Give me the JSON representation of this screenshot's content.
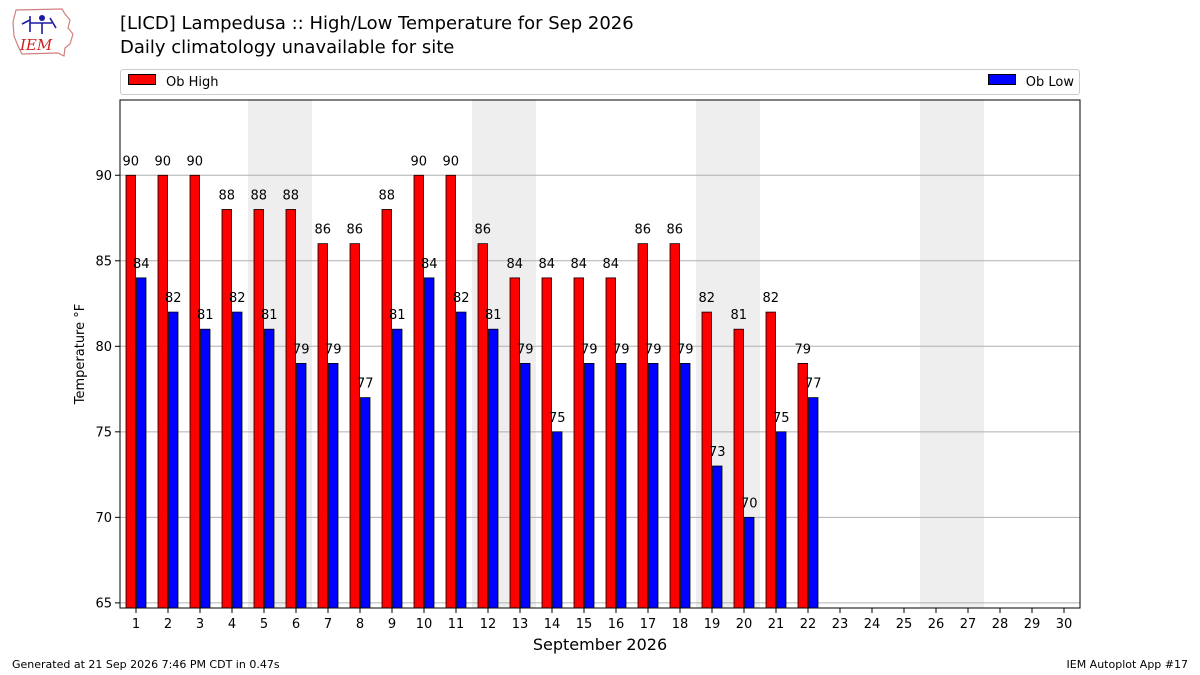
{
  "header": {
    "title_line1": "[LICD] Lampedusa :: High/Low Temperature for Sep 2026",
    "title_line2": "Daily climatology unavailable for site"
  },
  "logo": {
    "text": "IEM"
  },
  "footer": {
    "generated": "Generated at 21 Sep 2026 7:46 PM CDT in 0.47s",
    "app": "IEM Autoplot App #17"
  },
  "colors": {
    "high": "#ff0000",
    "low": "#0000ff",
    "weekend_band": "#eeeeee",
    "grid": "#b0b0b0"
  },
  "chart_data": {
    "type": "bar",
    "title": "[LICD] Lampedusa :: High/Low Temperature for Sep 2026",
    "subtitle": "Daily climatology unavailable for site",
    "xlabel": "September 2026",
    "ylabel": "Temperature °F",
    "ylim": [
      64.7,
      94.4
    ],
    "yticks": [
      65,
      70,
      75,
      80,
      85,
      90
    ],
    "categories": [
      "1",
      "2",
      "3",
      "4",
      "5",
      "6",
      "7",
      "8",
      "9",
      "10",
      "11",
      "12",
      "13",
      "14",
      "15",
      "16",
      "17",
      "18",
      "19",
      "20",
      "21",
      "22",
      "23",
      "24",
      "25",
      "26",
      "27",
      "28",
      "29",
      "30"
    ],
    "series": [
      {
        "name": "Ob High",
        "color": "#ff0000",
        "values": [
          90,
          90,
          90,
          88,
          88,
          88,
          86,
          86,
          88,
          90,
          90,
          86,
          84,
          84,
          84,
          84,
          86,
          86,
          82,
          81,
          82,
          79,
          null,
          null,
          null,
          null,
          null,
          null,
          null,
          null
        ]
      },
      {
        "name": "Ob Low",
        "color": "#0000ff",
        "values": [
          84,
          82,
          81,
          82,
          81,
          79,
          79,
          77,
          81,
          84,
          82,
          81,
          79,
          75,
          79,
          79,
          79,
          79,
          73,
          70,
          75,
          77,
          null,
          null,
          null,
          null,
          null,
          null,
          null,
          null
        ]
      }
    ],
    "shaded_weekend_days": [
      [
        5,
        6
      ],
      [
        12,
        13
      ],
      [
        19,
        20
      ],
      [
        26,
        27
      ]
    ],
    "grid": true,
    "legend_position": "top"
  }
}
